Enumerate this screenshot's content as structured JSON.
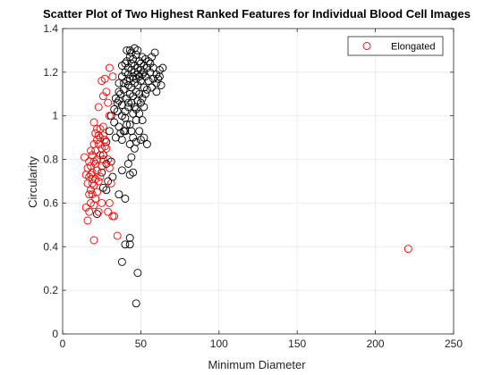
{
  "chart_data": {
    "type": "scatter",
    "title": "Scatter Plot of Two Highest Ranked Features for Individual Blood Cell Images",
    "xlabel": "Minimum Diameter",
    "ylabel": "Circularity",
    "xlim": [
      0,
      250
    ],
    "ylim": [
      0,
      1.4
    ],
    "xticks": [
      0,
      50,
      100,
      150,
      200,
      250
    ],
    "yticks": [
      0,
      0.2,
      0.4,
      0.6,
      0.8,
      1,
      1.2,
      1.4
    ],
    "xtick_labels": [
      "0",
      "50",
      "100",
      "150",
      "200",
      "250"
    ],
    "ytick_labels": [
      "0",
      "0.2",
      "0.4",
      "0.6",
      "0.8",
      "1",
      "1.2",
      "1.4"
    ],
    "grid": true,
    "legend": {
      "entries": [
        "Elongated"
      ],
      "placement": "top-right"
    },
    "series": [
      {
        "name": "",
        "color": "#000000",
        "marker": "open-circle",
        "points": [
          [
            47,
            0.14
          ],
          [
            48,
            0.28
          ],
          [
            38,
            0.33
          ],
          [
            43,
            0.41
          ],
          [
            40,
            0.41
          ],
          [
            43,
            0.44
          ],
          [
            36,
            0.64
          ],
          [
            40,
            0.62
          ],
          [
            38,
            0.75
          ],
          [
            43,
            0.73
          ],
          [
            45,
            0.74
          ],
          [
            42,
            0.78
          ],
          [
            44,
            0.81
          ],
          [
            46,
            0.85
          ],
          [
            43,
            0.87
          ],
          [
            47,
            0.88
          ],
          [
            50,
            0.89
          ],
          [
            45,
            0.9
          ],
          [
            49,
            0.93
          ],
          [
            52,
            0.9
          ],
          [
            54,
            0.87
          ],
          [
            43,
            0.96
          ],
          [
            47,
            0.98
          ],
          [
            51,
            0.98
          ],
          [
            33,
            0.97
          ],
          [
            36,
            0.95
          ],
          [
            30,
            0.93
          ],
          [
            28,
            0.88
          ],
          [
            26,
            0.82
          ],
          [
            28,
            0.78
          ],
          [
            31,
            0.79
          ],
          [
            25,
            0.74
          ],
          [
            26,
            0.67
          ],
          [
            29,
            0.7
          ],
          [
            28,
            0.66
          ],
          [
            32,
            0.72
          ],
          [
            22,
            0.55
          ],
          [
            34,
            0.9
          ],
          [
            37,
            0.92
          ],
          [
            38,
            0.89
          ],
          [
            40,
            0.93
          ],
          [
            35,
            1.02
          ],
          [
            38,
            1.0
          ],
          [
            40,
            1.02
          ],
          [
            42,
            1.04
          ],
          [
            44,
            1.06
          ],
          [
            46,
            1.04
          ],
          [
            48,
            1.07
          ],
          [
            50,
            1.06
          ],
          [
            52,
            1.04
          ],
          [
            41,
            1.08
          ],
          [
            43,
            1.1
          ],
          [
            45,
            1.09
          ],
          [
            47,
            1.11
          ],
          [
            49,
            1.1
          ],
          [
            51,
            1.08
          ],
          [
            53,
            1.1
          ],
          [
            39,
            1.12
          ],
          [
            42,
            1.14
          ],
          [
            44,
            1.13
          ],
          [
            46,
            1.15
          ],
          [
            48,
            1.14
          ],
          [
            50,
            1.16
          ],
          [
            52,
            1.13
          ],
          [
            54,
            1.12
          ],
          [
            36,
            1.15
          ],
          [
            38,
            1.18
          ],
          [
            40,
            1.2
          ],
          [
            42,
            1.22
          ],
          [
            44,
            1.21
          ],
          [
            46,
            1.23
          ],
          [
            48,
            1.22
          ],
          [
            50,
            1.24
          ],
          [
            52,
            1.2
          ],
          [
            54,
            1.22
          ],
          [
            56,
            1.2
          ],
          [
            58,
            1.22
          ],
          [
            60,
            1.19
          ],
          [
            62,
            1.21
          ],
          [
            64,
            1.22
          ],
          [
            41,
            1.25
          ],
          [
            43,
            1.27
          ],
          [
            45,
            1.26
          ],
          [
            47,
            1.28
          ],
          [
            49,
            1.25
          ],
          [
            51,
            1.27
          ],
          [
            43,
            1.3
          ],
          [
            46,
            1.31
          ],
          [
            41,
            1.3
          ],
          [
            53,
            1.26
          ],
          [
            55,
            1.25
          ],
          [
            57,
            1.27
          ],
          [
            59,
            1.29
          ],
          [
            61,
            1.17
          ],
          [
            63,
            1.14
          ],
          [
            60,
            1.11
          ],
          [
            57,
            1.13
          ],
          [
            55,
            1.16
          ],
          [
            53,
            1.18
          ],
          [
            51,
            1.19
          ],
          [
            49,
            1.18
          ],
          [
            47,
            1.17
          ],
          [
            45,
            1.18
          ],
          [
            43,
            1.17
          ],
          [
            41,
            1.16
          ],
          [
            39,
            1.15
          ],
          [
            37,
            1.1
          ],
          [
            35,
            1.06
          ],
          [
            33,
            1.03
          ],
          [
            31,
            1.0
          ],
          [
            34,
            1.08
          ],
          [
            36,
            1.11
          ],
          [
            38,
            1.23
          ],
          [
            40,
            1.24
          ],
          [
            42,
            1.19
          ],
          [
            44,
            1.24
          ],
          [
            46,
            1.2
          ],
          [
            48,
            1.19
          ],
          [
            50,
            1.21
          ],
          [
            52,
            1.23
          ],
          [
            56,
            1.24
          ],
          [
            58,
            1.17
          ],
          [
            60,
            1.15
          ],
          [
            62,
            1.18
          ],
          [
            44,
            1.29
          ],
          [
            48,
            1.3
          ],
          [
            42,
            1.06
          ],
          [
            45,
            1.01
          ],
          [
            47,
            1.03
          ],
          [
            49,
            1.01
          ],
          [
            40,
            0.99
          ],
          [
            38,
            1.05
          ],
          [
            36,
            1.07
          ],
          [
            41,
            0.96
          ],
          [
            39,
            0.93
          ],
          [
            44,
            0.93
          ]
        ]
      },
      {
        "name": "Elongated",
        "color": "#ff0000",
        "marker": "open-circle",
        "points": [
          [
            221,
            0.39
          ],
          [
            20,
            0.43
          ],
          [
            15,
            0.58
          ],
          [
            14,
            0.81
          ],
          [
            16,
            0.52
          ],
          [
            17,
            0.56
          ],
          [
            18,
            0.6
          ],
          [
            17,
            0.64
          ],
          [
            18,
            0.66
          ],
          [
            19,
            0.69
          ],
          [
            17,
            0.72
          ],
          [
            19,
            0.74
          ],
          [
            18,
            0.77
          ],
          [
            20,
            0.79
          ],
          [
            19,
            0.82
          ],
          [
            21,
            0.84
          ],
          [
            20,
            0.87
          ],
          [
            22,
            0.89
          ],
          [
            21,
            0.92
          ],
          [
            23,
            0.91
          ],
          [
            22,
            0.94
          ],
          [
            24,
            0.9
          ],
          [
            23,
            0.87
          ],
          [
            25,
            0.85
          ],
          [
            24,
            0.82
          ],
          [
            26,
            0.8
          ],
          [
            25,
            0.77
          ],
          [
            22,
            0.75
          ],
          [
            21,
            0.71
          ],
          [
            20,
            0.68
          ],
          [
            19,
            0.64
          ],
          [
            21,
            0.62
          ],
          [
            20,
            0.59
          ],
          [
            22,
            0.65
          ],
          [
            23,
            0.7
          ],
          [
            24,
            0.72
          ],
          [
            16,
            0.69
          ],
          [
            15,
            0.73
          ],
          [
            16,
            0.76
          ],
          [
            17,
            0.79
          ],
          [
            18,
            0.84
          ],
          [
            20,
            0.97
          ],
          [
            23,
            1.04
          ],
          [
            26,
            1.09
          ],
          [
            25,
            1.16
          ],
          [
            27,
            1.17
          ],
          [
            30,
            1.22
          ],
          [
            32,
            1.18
          ],
          [
            28,
            1.11
          ],
          [
            29,
            1.06
          ],
          [
            30,
            1.0
          ],
          [
            26,
            0.95
          ],
          [
            27,
            0.89
          ],
          [
            28,
            0.85
          ],
          [
            29,
            0.8
          ],
          [
            30,
            0.76
          ],
          [
            31,
            0.69
          ],
          [
            30,
            0.6
          ],
          [
            29,
            0.56
          ],
          [
            32,
            0.54
          ],
          [
            33,
            0.54
          ],
          [
            35,
            0.45
          ],
          [
            26,
            0.91
          ],
          [
            27,
            0.86
          ],
          [
            24,
            0.94
          ],
          [
            25,
            0.6
          ],
          [
            23,
            0.56
          ],
          [
            22,
            0.8
          ],
          [
            21,
            0.78
          ],
          [
            19,
            0.71
          ],
          [
            18,
            0.73
          ]
        ]
      }
    ]
  }
}
